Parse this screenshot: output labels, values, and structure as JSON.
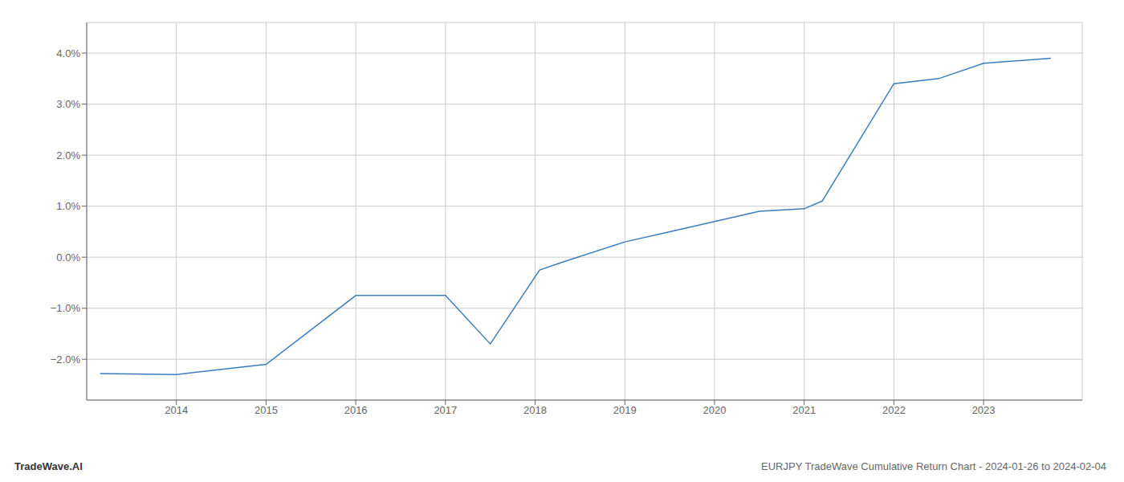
{
  "chart_data": {
    "type": "line",
    "x": [
      2013.15,
      2014.0,
      2015.0,
      2016.0,
      2016.92,
      2017.0,
      2017.5,
      2018.05,
      2018.3,
      2019.0,
      2019.5,
      2020.0,
      2020.5,
      2021.0,
      2021.2,
      2022.0,
      2022.5,
      2023.0,
      2023.75
    ],
    "values": [
      -0.0228,
      -0.023,
      -0.021,
      -0.0075,
      -0.0075,
      -0.0075,
      -0.017,
      -0.0025,
      -0.001,
      0.003,
      0.005,
      0.007,
      0.009,
      0.0095,
      0.011,
      0.034,
      0.035,
      0.038,
      0.039
    ],
    "color": "#3a7ebf",
    "xlim": [
      2013.0,
      2024.1
    ],
    "ylim": [
      -0.028,
      0.046
    ],
    "xticks": [
      2014,
      2015,
      2016,
      2017,
      2018,
      2019,
      2020,
      2021,
      2022,
      2023
    ],
    "yticks": [
      {
        "value": -0.02,
        "label": "−2.0%"
      },
      {
        "value": -0.01,
        "label": "−1.0%"
      },
      {
        "value": 0.0,
        "label": "0.0%"
      },
      {
        "value": 0.01,
        "label": "1.0%"
      },
      {
        "value": 0.02,
        "label": "2.0%"
      },
      {
        "value": 0.03,
        "label": "3.0%"
      },
      {
        "value": 0.04,
        "label": "4.0%"
      }
    ],
    "grid": true,
    "annotations": [
      "TradeWave.AI",
      "EURJPY TradeWave Cumulative Return Chart - 2024-01-26 to 2024-02-04"
    ]
  }
}
